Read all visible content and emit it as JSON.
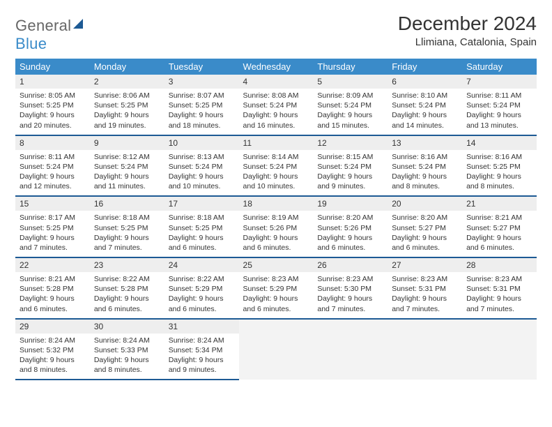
{
  "brand": {
    "word1": "General",
    "word2": "Blue"
  },
  "title": "December 2024",
  "location": "Llimiana, Catalonia, Spain",
  "weekdays": [
    "Sunday",
    "Monday",
    "Tuesday",
    "Wednesday",
    "Thursday",
    "Friday",
    "Saturday"
  ],
  "colors": {
    "header_bg": "#3a8bc9",
    "rule": "#1d5a94",
    "daynum_bg": "#eeeeee"
  },
  "weeks": [
    [
      {
        "n": "1",
        "sunrise": "8:05 AM",
        "sunset": "5:25 PM",
        "daylight": "9 hours and 20 minutes."
      },
      {
        "n": "2",
        "sunrise": "8:06 AM",
        "sunset": "5:25 PM",
        "daylight": "9 hours and 19 minutes."
      },
      {
        "n": "3",
        "sunrise": "8:07 AM",
        "sunset": "5:25 PM",
        "daylight": "9 hours and 18 minutes."
      },
      {
        "n": "4",
        "sunrise": "8:08 AM",
        "sunset": "5:24 PM",
        "daylight": "9 hours and 16 minutes."
      },
      {
        "n": "5",
        "sunrise": "8:09 AM",
        "sunset": "5:24 PM",
        "daylight": "9 hours and 15 minutes."
      },
      {
        "n": "6",
        "sunrise": "8:10 AM",
        "sunset": "5:24 PM",
        "daylight": "9 hours and 14 minutes."
      },
      {
        "n": "7",
        "sunrise": "8:11 AM",
        "sunset": "5:24 PM",
        "daylight": "9 hours and 13 minutes."
      }
    ],
    [
      {
        "n": "8",
        "sunrise": "8:11 AM",
        "sunset": "5:24 PM",
        "daylight": "9 hours and 12 minutes."
      },
      {
        "n": "9",
        "sunrise": "8:12 AM",
        "sunset": "5:24 PM",
        "daylight": "9 hours and 11 minutes."
      },
      {
        "n": "10",
        "sunrise": "8:13 AM",
        "sunset": "5:24 PM",
        "daylight": "9 hours and 10 minutes."
      },
      {
        "n": "11",
        "sunrise": "8:14 AM",
        "sunset": "5:24 PM",
        "daylight": "9 hours and 10 minutes."
      },
      {
        "n": "12",
        "sunrise": "8:15 AM",
        "sunset": "5:24 PM",
        "daylight": "9 hours and 9 minutes."
      },
      {
        "n": "13",
        "sunrise": "8:16 AM",
        "sunset": "5:24 PM",
        "daylight": "9 hours and 8 minutes."
      },
      {
        "n": "14",
        "sunrise": "8:16 AM",
        "sunset": "5:25 PM",
        "daylight": "9 hours and 8 minutes."
      }
    ],
    [
      {
        "n": "15",
        "sunrise": "8:17 AM",
        "sunset": "5:25 PM",
        "daylight": "9 hours and 7 minutes."
      },
      {
        "n": "16",
        "sunrise": "8:18 AM",
        "sunset": "5:25 PM",
        "daylight": "9 hours and 7 minutes."
      },
      {
        "n": "17",
        "sunrise": "8:18 AM",
        "sunset": "5:25 PM",
        "daylight": "9 hours and 6 minutes."
      },
      {
        "n": "18",
        "sunrise": "8:19 AM",
        "sunset": "5:26 PM",
        "daylight": "9 hours and 6 minutes."
      },
      {
        "n": "19",
        "sunrise": "8:20 AM",
        "sunset": "5:26 PM",
        "daylight": "9 hours and 6 minutes."
      },
      {
        "n": "20",
        "sunrise": "8:20 AM",
        "sunset": "5:27 PM",
        "daylight": "9 hours and 6 minutes."
      },
      {
        "n": "21",
        "sunrise": "8:21 AM",
        "sunset": "5:27 PM",
        "daylight": "9 hours and 6 minutes."
      }
    ],
    [
      {
        "n": "22",
        "sunrise": "8:21 AM",
        "sunset": "5:28 PM",
        "daylight": "9 hours and 6 minutes."
      },
      {
        "n": "23",
        "sunrise": "8:22 AM",
        "sunset": "5:28 PM",
        "daylight": "9 hours and 6 minutes."
      },
      {
        "n": "24",
        "sunrise": "8:22 AM",
        "sunset": "5:29 PM",
        "daylight": "9 hours and 6 minutes."
      },
      {
        "n": "25",
        "sunrise": "8:23 AM",
        "sunset": "5:29 PM",
        "daylight": "9 hours and 6 minutes."
      },
      {
        "n": "26",
        "sunrise": "8:23 AM",
        "sunset": "5:30 PM",
        "daylight": "9 hours and 7 minutes."
      },
      {
        "n": "27",
        "sunrise": "8:23 AM",
        "sunset": "5:31 PM",
        "daylight": "9 hours and 7 minutes."
      },
      {
        "n": "28",
        "sunrise": "8:23 AM",
        "sunset": "5:31 PM",
        "daylight": "9 hours and 7 minutes."
      }
    ],
    [
      {
        "n": "29",
        "sunrise": "8:24 AM",
        "sunset": "5:32 PM",
        "daylight": "9 hours and 8 minutes."
      },
      {
        "n": "30",
        "sunrise": "8:24 AM",
        "sunset": "5:33 PM",
        "daylight": "9 hours and 8 minutes."
      },
      {
        "n": "31",
        "sunrise": "8:24 AM",
        "sunset": "5:34 PM",
        "daylight": "9 hours and 9 minutes."
      },
      null,
      null,
      null,
      null
    ]
  ],
  "labels": {
    "sunrise": "Sunrise:",
    "sunset": "Sunset:",
    "daylight": "Daylight:"
  }
}
